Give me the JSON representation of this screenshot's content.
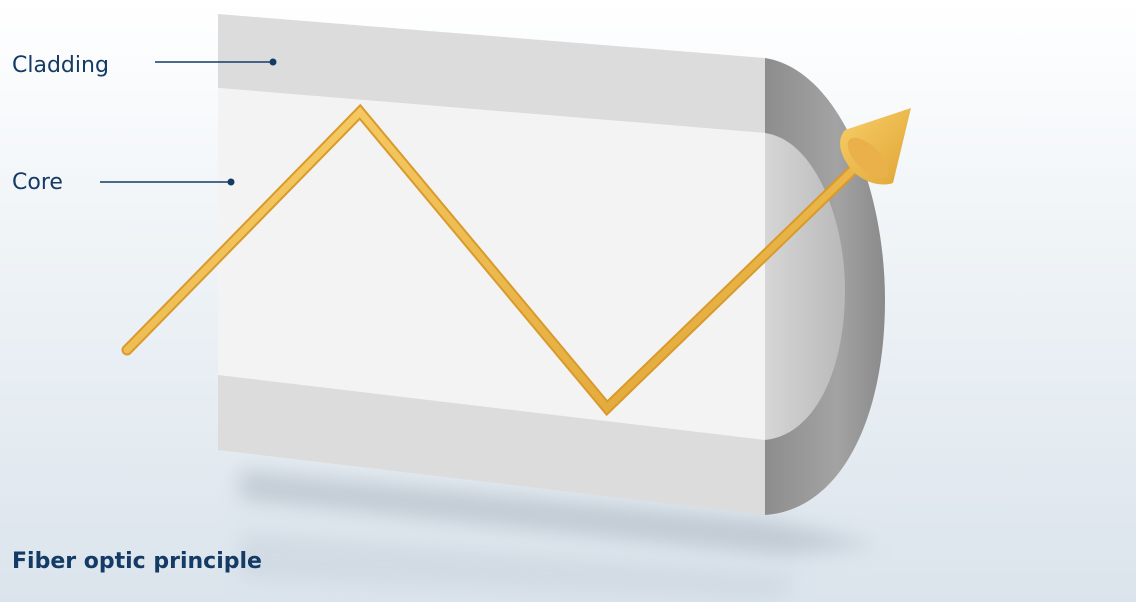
{
  "labels": [
    "Cladding",
    "Core"
  ],
  "caption": "Fiber optic principle"
}
